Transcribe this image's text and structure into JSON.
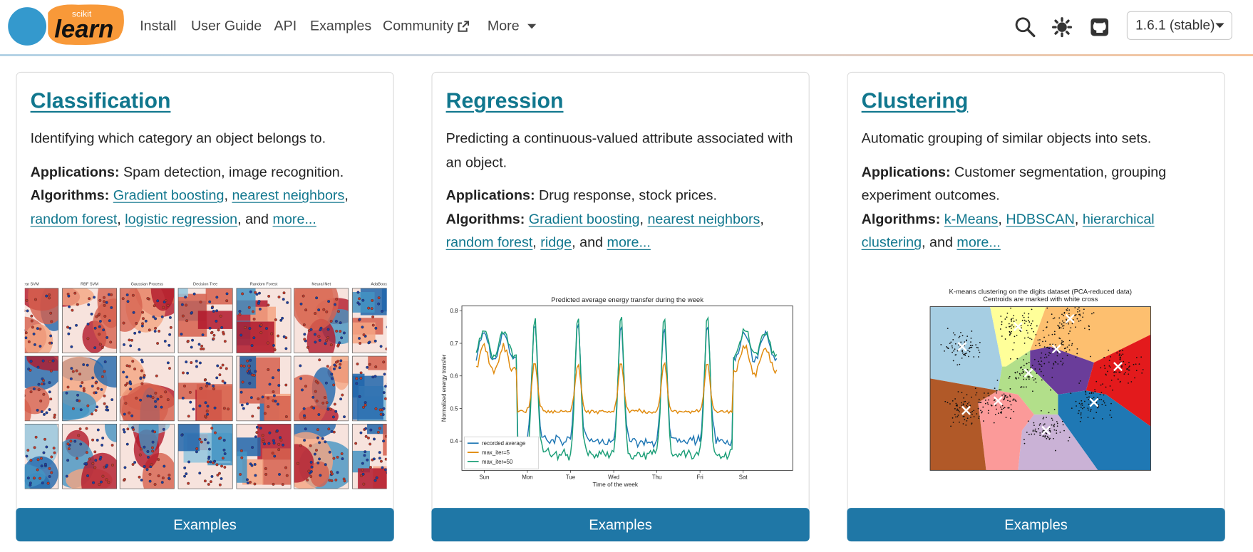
{
  "navbar": {
    "logo_small": "scikit",
    "logo_large": "learn",
    "links": [
      "Install",
      "User Guide",
      "API",
      "Examples",
      "Community",
      "More"
    ],
    "version": "1.6.1 (stable)"
  },
  "cards": [
    {
      "title": "Classification",
      "description": "Identifying which category an object belongs to.",
      "applications_label": "Applications:",
      "applications": "Spam detection, image recognition.",
      "algorithms_label": "Algorithms:",
      "algorithms": [
        {
          "text": "Gradient boosting",
          "link": true
        },
        {
          "text": ", "
        },
        {
          "text": "nearest neighbors",
          "link": true
        },
        {
          "text": ", "
        },
        {
          "text": "random forest",
          "link": true
        },
        {
          "text": ", "
        },
        {
          "text": "logistic regression",
          "link": true
        },
        {
          "text": ", and "
        },
        {
          "text": "more...",
          "link": true
        }
      ],
      "button": "Examples",
      "figure": {
        "kind": "classifiers",
        "panel_titles": [
          "ear SVM",
          "RBF SVM",
          "Gaussian Process",
          "Decision Tree",
          "Random Forest",
          "Neural Net",
          "AdaBoost"
        ]
      }
    },
    {
      "title": "Regression",
      "description": "Predicting a continuous-valued attribute associated with an object.",
      "applications_label": "Applications:",
      "applications": "Drug response, stock prices.",
      "algorithms_label": "Algorithms:",
      "algorithms": [
        {
          "text": "Gradient boosting",
          "link": true
        },
        {
          "text": ", "
        },
        {
          "text": "nearest neighbors",
          "link": true
        },
        {
          "text": ", "
        },
        {
          "text": "random forest",
          "link": true
        },
        {
          "text": ", "
        },
        {
          "text": "ridge",
          "link": true
        },
        {
          "text": ", and "
        },
        {
          "text": "more...",
          "link": true
        }
      ],
      "button": "Examples",
      "figure": {
        "kind": "regression",
        "title": "Predicted average energy transfer during the week",
        "xlabel": "Time of the week",
        "ylabel": "Normalized energy transfer",
        "ylim": [
          0.31,
          0.815
        ],
        "yticks": [
          0.4,
          0.5,
          0.6,
          0.7,
          0.8
        ],
        "xticks": [
          "Sun",
          "Mon",
          "Tue",
          "Wed",
          "Thu",
          "Fri",
          "Sat"
        ],
        "series": [
          {
            "name": "recorded average",
            "color": "#1f77b4"
          },
          {
            "name": "max_iter=5",
            "color": "#e08a0c"
          },
          {
            "name": "max_iter=50",
            "color": "#1b9e77"
          }
        ]
      }
    },
    {
      "title": "Clustering",
      "description": "Automatic grouping of similar objects into sets.",
      "applications_label": "Applications:",
      "applications": "Customer segmentation, grouping experiment outcomes.",
      "algorithms_label": "Algorithms:",
      "algorithms": [
        {
          "text": "k-Means",
          "link": true
        },
        {
          "text": ", "
        },
        {
          "text": "HDBSCAN",
          "link": true
        },
        {
          "text": ", "
        },
        {
          "text": "hierarchical clustering",
          "link": true
        },
        {
          "text": ", and "
        },
        {
          "text": "more...",
          "link": true
        }
      ],
      "button": "Examples",
      "figure": {
        "kind": "clustering",
        "title_lines": [
          "K-means clustering on the digits dataset (PCA-reduced data)",
          "Centroids are marked with white cross"
        ]
      }
    }
  ]
}
